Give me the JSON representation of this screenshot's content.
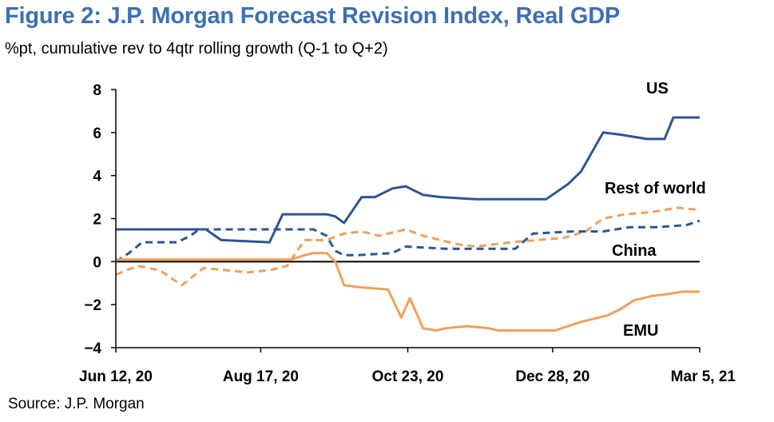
{
  "title": "Figure 2: J.P. Morgan Forecast Revision Index, Real GDP",
  "subtitle": "%pt, cumulative rev to 4qtr rolling growth (Q-1 to Q+2)",
  "source": "Source: J.P. Morgan",
  "chart_data": {
    "type": "line",
    "ylim": [
      -4,
      8
    ],
    "yticks": [
      8,
      6,
      4,
      2,
      0,
      -2,
      -4
    ],
    "ytick_labels": [
      "8",
      "6",
      "4",
      "2",
      "0",
      "−2",
      "−4"
    ],
    "xrange": [
      0,
      266
    ],
    "xticks": [
      {
        "x": 0,
        "label": "Jun 12, 20"
      },
      {
        "x": 66,
        "label": "Aug 17, 20"
      },
      {
        "x": 133,
        "label": "Oct 23, 20"
      },
      {
        "x": 199,
        "label": "Dec 28, 20"
      },
      {
        "x": 266,
        "label": "Mar 5, 21"
      }
    ],
    "colors": {
      "blue": "#2f5496",
      "orange": "#f0a05a",
      "axis": "#000000"
    },
    "series": [
      {
        "name": "US",
        "style": "solid",
        "color": "#2f5496",
        "x": [
          0,
          34,
          41,
          48,
          70,
          76,
          96,
          100,
          104,
          112,
          118,
          126,
          132,
          140,
          148,
          164,
          180,
          196,
          206,
          212,
          222,
          230,
          242,
          250,
          254,
          266
        ],
        "y": [
          1.5,
          1.5,
          1.5,
          1.0,
          0.9,
          2.2,
          2.2,
          2.1,
          1.8,
          3.0,
          3.0,
          3.4,
          3.5,
          3.1,
          3.0,
          2.9,
          2.9,
          2.9,
          3.6,
          4.2,
          6.0,
          5.9,
          5.7,
          5.7,
          6.7,
          6.7
        ]
      },
      {
        "name": "Rest of world",
        "style": "dashed",
        "color": "#f0a05a",
        "x": [
          0,
          10,
          20,
          30,
          40,
          50,
          60,
          70,
          78,
          86,
          96,
          104,
          112,
          120,
          132,
          140,
          148,
          156,
          164,
          172,
          180,
          192,
          204,
          214,
          222,
          232,
          244,
          256,
          266
        ],
        "y": [
          -0.6,
          -0.2,
          -0.4,
          -1.1,
          -0.3,
          -0.4,
          -0.5,
          -0.4,
          -0.2,
          1.0,
          1.0,
          1.3,
          1.4,
          1.2,
          1.5,
          1.2,
          1.0,
          0.8,
          0.7,
          0.8,
          0.9,
          1.0,
          1.1,
          1.4,
          2.0,
          2.2,
          2.3,
          2.5,
          2.4
        ]
      },
      {
        "name": "China",
        "style": "dashed",
        "color": "#2f5496",
        "x": [
          0,
          6,
          12,
          28,
          34,
          38,
          90,
          96,
          100,
          104,
          110,
          126,
          132,
          150,
          166,
          182,
          190,
          208,
          222,
          234,
          246,
          260,
          266
        ],
        "y": [
          0.0,
          0.4,
          0.9,
          0.9,
          1.2,
          1.5,
          1.5,
          1.2,
          0.5,
          0.3,
          0.3,
          0.4,
          0.7,
          0.6,
          0.6,
          0.6,
          1.3,
          1.4,
          1.4,
          1.6,
          1.6,
          1.7,
          1.9
        ]
      },
      {
        "name": "EMU",
        "style": "solid",
        "color": "#f0a05a",
        "x": [
          0,
          66,
          80,
          86,
          90,
          96,
          100,
          104,
          112,
          124,
          130,
          134,
          140,
          146,
          150,
          160,
          170,
          174,
          180,
          190,
          200,
          212,
          220,
          224,
          230,
          236,
          244,
          252,
          258,
          266
        ],
        "y": [
          0.1,
          0.1,
          0.1,
          0.3,
          0.4,
          0.4,
          0.0,
          -1.1,
          -1.2,
          -1.3,
          -2.6,
          -1.7,
          -3.1,
          -3.2,
          -3.1,
          -3.0,
          -3.1,
          -3.2,
          -3.2,
          -3.2,
          -3.2,
          -2.8,
          -2.6,
          -2.5,
          -2.2,
          -1.8,
          -1.6,
          -1.5,
          -1.4,
          -1.4
        ]
      }
    ],
    "series_labels": [
      "US",
      "Rest of world",
      "China",
      "EMU"
    ]
  }
}
